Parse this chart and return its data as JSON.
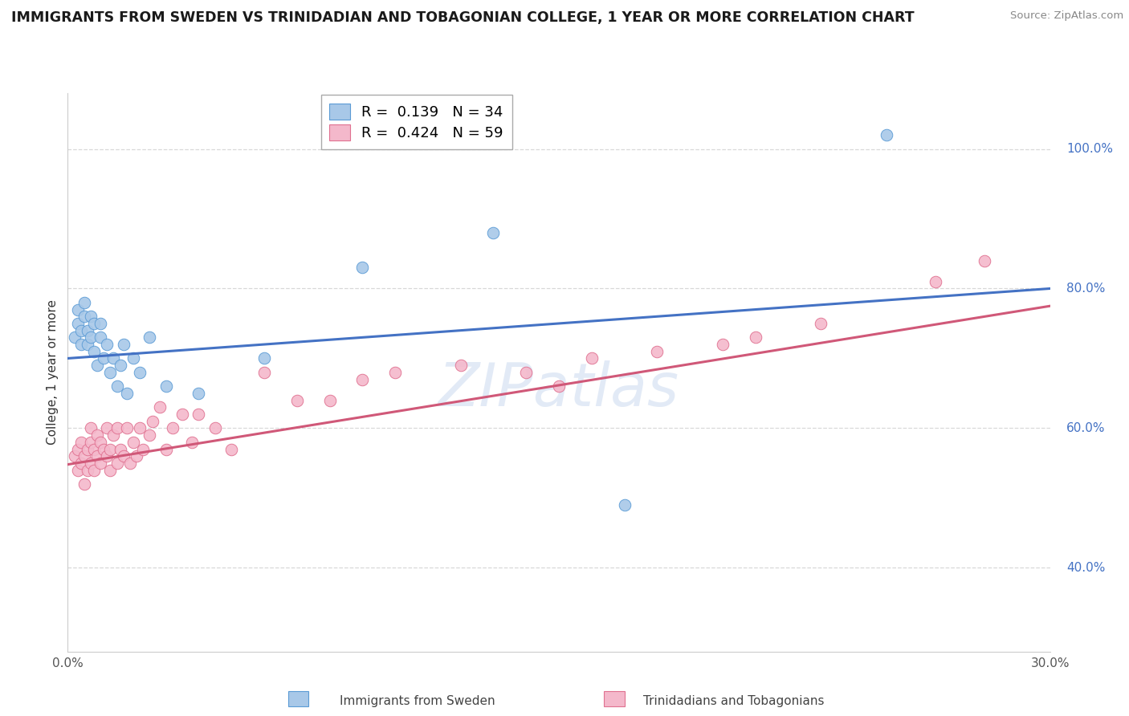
{
  "title": "IMMIGRANTS FROM SWEDEN VS TRINIDADIAN AND TOBAGONIAN COLLEGE, 1 YEAR OR MORE CORRELATION CHART",
  "source": "Source: ZipAtlas.com",
  "ylabel": "College, 1 year or more",
  "xlim": [
    0.0,
    0.3
  ],
  "ylim": [
    0.28,
    1.08
  ],
  "xticks": [
    0.0,
    0.05,
    0.1,
    0.15,
    0.2,
    0.25,
    0.3
  ],
  "xtick_labels": [
    "0.0%",
    "",
    "",
    "",
    "",
    "",
    "30.0%"
  ],
  "yticks_right": [
    0.4,
    0.6,
    0.8,
    1.0
  ],
  "ytick_labels_right": [
    "40.0%",
    "60.0%",
    "80.0%",
    "100.0%"
  ],
  "blue_R": 0.139,
  "blue_N": 34,
  "pink_R": 0.424,
  "pink_N": 59,
  "blue_color": "#a8c8e8",
  "blue_edge_color": "#5b9bd5",
  "blue_line_color": "#4472c4",
  "pink_color": "#f4b8cb",
  "pink_edge_color": "#e07090",
  "pink_line_color": "#d05878",
  "watermark": "ZIPatlas",
  "legend_label_blue": "Immigrants from Sweden",
  "legend_label_pink": "Trinidadians and Tobagonians",
  "blue_line_x0": 0.0,
  "blue_line_y0": 0.7,
  "blue_line_x1": 0.3,
  "blue_line_y1": 0.8,
  "pink_line_x0": 0.0,
  "pink_line_y0": 0.548,
  "pink_line_x1": 0.3,
  "pink_line_y1": 0.775,
  "blue_scatter_x": [
    0.002,
    0.003,
    0.003,
    0.004,
    0.004,
    0.005,
    0.005,
    0.006,
    0.006,
    0.007,
    0.007,
    0.008,
    0.008,
    0.009,
    0.01,
    0.01,
    0.011,
    0.012,
    0.013,
    0.014,
    0.015,
    0.016,
    0.017,
    0.018,
    0.02,
    0.022,
    0.025,
    0.03,
    0.04,
    0.06,
    0.09,
    0.13,
    0.17,
    0.25
  ],
  "blue_scatter_y": [
    0.73,
    0.75,
    0.77,
    0.72,
    0.74,
    0.78,
    0.76,
    0.72,
    0.74,
    0.73,
    0.76,
    0.71,
    0.75,
    0.69,
    0.73,
    0.75,
    0.7,
    0.72,
    0.68,
    0.7,
    0.66,
    0.69,
    0.72,
    0.65,
    0.7,
    0.68,
    0.73,
    0.66,
    0.65,
    0.7,
    0.83,
    0.88,
    0.49,
    1.02
  ],
  "pink_scatter_x": [
    0.002,
    0.003,
    0.003,
    0.004,
    0.004,
    0.005,
    0.005,
    0.006,
    0.006,
    0.007,
    0.007,
    0.007,
    0.008,
    0.008,
    0.009,
    0.009,
    0.01,
    0.01,
    0.011,
    0.012,
    0.012,
    0.013,
    0.013,
    0.014,
    0.015,
    0.015,
    0.016,
    0.017,
    0.018,
    0.019,
    0.02,
    0.021,
    0.022,
    0.023,
    0.025,
    0.026,
    0.028,
    0.03,
    0.032,
    0.035,
    0.038,
    0.04,
    0.045,
    0.05,
    0.06,
    0.07,
    0.08,
    0.09,
    0.1,
    0.12,
    0.14,
    0.15,
    0.16,
    0.18,
    0.2,
    0.21,
    0.23,
    0.265,
    0.28
  ],
  "pink_scatter_y": [
    0.56,
    0.54,
    0.57,
    0.55,
    0.58,
    0.52,
    0.56,
    0.54,
    0.57,
    0.55,
    0.58,
    0.6,
    0.54,
    0.57,
    0.56,
    0.59,
    0.55,
    0.58,
    0.57,
    0.6,
    0.56,
    0.54,
    0.57,
    0.59,
    0.55,
    0.6,
    0.57,
    0.56,
    0.6,
    0.55,
    0.58,
    0.56,
    0.6,
    0.57,
    0.59,
    0.61,
    0.63,
    0.57,
    0.6,
    0.62,
    0.58,
    0.62,
    0.6,
    0.57,
    0.68,
    0.64,
    0.64,
    0.67,
    0.68,
    0.69,
    0.68,
    0.66,
    0.7,
    0.71,
    0.72,
    0.73,
    0.75,
    0.81,
    0.84
  ],
  "background_color": "#ffffff",
  "grid_color": "#d8d8d8"
}
